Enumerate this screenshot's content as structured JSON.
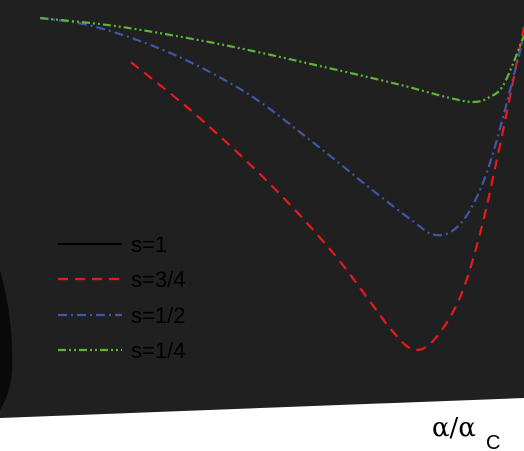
{
  "chart_data": {
    "type": "line",
    "title": "",
    "xlabel": "α/α",
    "xlabel_subscript": "C",
    "ylabel": "",
    "legend_position": "center-left",
    "grid": false,
    "xlim": [
      0,
      1.0
    ],
    "ylim": [
      0,
      1.0
    ],
    "series": [
      {
        "name": "s=1",
        "color": "#000000",
        "style": "solid",
        "x": [
          0.8,
          0.85,
          0.9,
          0.95,
          1.0
        ],
        "y": [
          0.0,
          0.0,
          0.0,
          0.0,
          0.0
        ]
      },
      {
        "name": "s=3/4",
        "color": "#e8191e",
        "style": "dashed",
        "x": [
          0.22,
          0.35,
          0.5,
          0.62,
          0.7,
          0.74,
          0.78,
          0.82,
          0.87,
          0.91,
          0.95,
          1.0
        ],
        "y": [
          0.1,
          0.22,
          0.38,
          0.53,
          0.65,
          0.71,
          0.75,
          0.73,
          0.64,
          0.5,
          0.3,
          0.02
        ]
      },
      {
        "name": "s=1/2",
        "color": "#3f57a8",
        "style": "dashdot",
        "x": [
          0.04,
          0.15,
          0.3,
          0.45,
          0.58,
          0.7,
          0.78,
          0.82,
          0.86,
          0.9,
          0.94,
          1.0
        ],
        "y": [
          0.0,
          0.02,
          0.08,
          0.17,
          0.28,
          0.39,
          0.46,
          0.49,
          0.48,
          0.42,
          0.3,
          0.04
        ]
      },
      {
        "name": "s=1/4",
        "color": "#5cb536",
        "style": "dashdotdot",
        "x": [
          0.04,
          0.2,
          0.4,
          0.6,
          0.75,
          0.85,
          0.9,
          0.93,
          0.96,
          1.0
        ],
        "y": [
          0.0,
          0.02,
          0.06,
          0.11,
          0.15,
          0.18,
          0.19,
          0.18,
          0.15,
          0.04
        ]
      }
    ]
  },
  "colors": {
    "plot_background": "#212020",
    "page_background": "#ffffff",
    "legend_text": "#000000"
  }
}
